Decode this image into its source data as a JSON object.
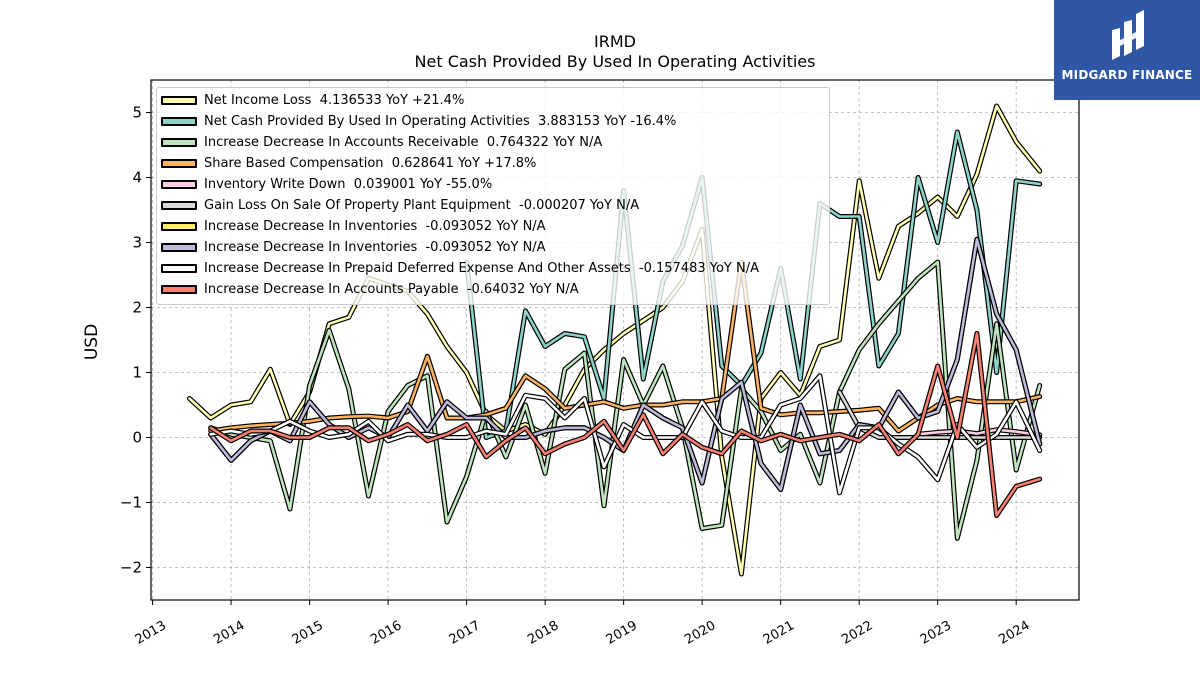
{
  "header": {
    "title": "IRMD",
    "subtitle": "Net Cash Provided By Used In Operating Activities"
  },
  "logo": {
    "text": "MIDGARD FINANCE",
    "bg_color": "#2f57a6"
  },
  "chart_data": {
    "type": "line",
    "title": "IRMD",
    "subtitle": "Net Cash Provided By Used In Operating Activities",
    "ylabel": "USD",
    "xlabel": "",
    "xlim": [
      2012.98,
      2024.8
    ],
    "ylim": [
      -2.5,
      5.5
    ],
    "yticks": [
      -2,
      -1,
      0,
      1,
      2,
      3,
      4,
      5
    ],
    "ytick_labels": [
      "−2",
      "−1",
      "0",
      "1",
      "2",
      "3",
      "4",
      "5"
    ],
    "xticks": [
      2013,
      2014,
      2015,
      2016,
      2017,
      2018,
      2019,
      2020,
      2021,
      2022,
      2023,
      2024
    ],
    "xtick_labels": [
      "2013",
      "2014",
      "2015",
      "2016",
      "2017",
      "2018",
      "2019",
      "2020",
      "2021",
      "2022",
      "2023",
      "2024"
    ],
    "grid": true,
    "legend_position": "upper-left",
    "series": [
      {
        "name": "Net Income Loss",
        "legend_label": "Net Income Loss  4.136533 YoY +21.4%",
        "color": "#ffffb3",
        "x": [
          2013.47,
          2013.74,
          2014.0,
          2014.25,
          2014.5,
          2014.75,
          2015.0,
          2015.25,
          2015.5,
          2015.75,
          2016.0,
          2016.25,
          2016.5,
          2016.75,
          2017.0,
          2017.25,
          2017.5,
          2017.75,
          2018.0,
          2018.25,
          2018.5,
          2018.75,
          2019.0,
          2019.25,
          2019.5,
          2019.75,
          2020.0,
          2020.25,
          2020.5,
          2020.75,
          2021.0,
          2021.25,
          2021.5,
          2021.75,
          2022.0,
          2022.25,
          2022.5,
          2022.75,
          2023.0,
          2023.25,
          2023.5,
          2023.75,
          2024.0,
          2024.3
        ],
        "y": [
          0.6,
          0.3,
          0.5,
          0.55,
          1.05,
          0.2,
          0.7,
          1.75,
          1.85,
          2.45,
          2.35,
          2.25,
          1.9,
          1.4,
          1.0,
          0.35,
          0.1,
          0.2,
          0.05,
          0.5,
          1.05,
          1.35,
          1.6,
          1.8,
          2.0,
          2.4,
          3.2,
          -0.3,
          -2.1,
          0.6,
          1.0,
          0.65,
          1.4,
          1.5,
          3.95,
          2.45,
          3.25,
          3.45,
          3.7,
          3.4,
          4.05,
          5.1,
          4.55,
          4.1
        ]
      },
      {
        "name": "Net Cash Provided By Used In Operating Activities",
        "legend_label": "Net Cash Provided By Used In Operating Activities  3.883153 YoY -16.4%",
        "color": "#8dd3c7",
        "x": [
          2017.0,
          2017.25,
          2017.5,
          2017.75,
          2018.0,
          2018.25,
          2018.5,
          2018.75,
          2019.0,
          2019.25,
          2019.5,
          2019.75,
          2020.0,
          2020.25,
          2020.5,
          2020.75,
          2021.0,
          2021.25,
          2021.5,
          2021.75,
          2022.0,
          2022.25,
          2022.5,
          2022.75,
          2023.0,
          2023.25,
          2023.5,
          2023.75,
          2024.0,
          2024.3
        ],
        "y": [
          2.7,
          0.0,
          0.1,
          1.95,
          1.4,
          1.6,
          1.55,
          0.6,
          3.8,
          0.9,
          2.4,
          2.95,
          4.0,
          1.1,
          0.8,
          1.3,
          2.6,
          0.9,
          3.6,
          3.4,
          3.4,
          1.1,
          1.6,
          4.0,
          3.0,
          4.7,
          3.5,
          1.0,
          3.95,
          3.9
        ]
      },
      {
        "name": "Increase Decrease In Accounts Receivable",
        "legend_label": "Increase Decrease In Accounts Receivable  0.764322 YoY N/A",
        "color": "#bfe5bf",
        "x": [
          2013.74,
          2014.0,
          2014.25,
          2014.5,
          2014.75,
          2015.0,
          2015.25,
          2015.5,
          2015.75,
          2016.0,
          2016.25,
          2016.5,
          2016.75,
          2017.0,
          2017.25,
          2017.5,
          2017.75,
          2018.0,
          2018.25,
          2018.5,
          2018.75,
          2019.0,
          2019.25,
          2019.5,
          2019.75,
          2020.0,
          2020.25,
          2020.5,
          2020.75,
          2021.0,
          2021.25,
          2021.5,
          2021.75,
          2022.0,
          2022.25,
          2022.5,
          2022.75,
          2023.0,
          2023.25,
          2023.5,
          2023.75,
          2024.0,
          2024.3
        ],
        "y": [
          0.15,
          0.05,
          0.0,
          -0.05,
          -1.1,
          0.8,
          1.65,
          0.75,
          -0.9,
          0.4,
          0.8,
          0.95,
          -1.3,
          -0.6,
          0.4,
          -0.3,
          0.5,
          -0.55,
          1.05,
          1.3,
          -1.05,
          1.2,
          0.5,
          1.1,
          0.15,
          -1.4,
          -1.35,
          0.75,
          0.4,
          -0.2,
          0.05,
          -0.7,
          0.7,
          1.35,
          1.75,
          2.1,
          2.45,
          2.7,
          -1.55,
          -0.35,
          1.75,
          -0.5,
          0.8
        ]
      },
      {
        "name": "Share Based Compensation",
        "legend_label": "Share Based Compensation  0.628641 YoY +17.8%",
        "color": "#fdb462",
        "x": [
          2013.74,
          2014.0,
          2014.25,
          2014.5,
          2014.75,
          2015.0,
          2015.25,
          2015.5,
          2015.75,
          2016.0,
          2016.25,
          2016.5,
          2016.75,
          2017.0,
          2017.25,
          2017.5,
          2017.75,
          2018.0,
          2018.25,
          2018.5,
          2018.75,
          2019.0,
          2019.25,
          2019.5,
          2019.75,
          2020.0,
          2020.25,
          2020.5,
          2020.75,
          2021.0,
          2021.25,
          2021.5,
          2021.75,
          2022.0,
          2022.25,
          2022.5,
          2022.75,
          2023.0,
          2023.25,
          2023.5,
          2023.75,
          2024.0,
          2024.3
        ],
        "y": [
          0.1,
          0.15,
          0.18,
          0.2,
          0.22,
          0.25,
          0.3,
          0.32,
          0.33,
          0.3,
          0.4,
          1.25,
          0.3,
          0.3,
          0.35,
          0.45,
          0.95,
          0.75,
          0.45,
          0.5,
          0.55,
          0.45,
          0.5,
          0.5,
          0.55,
          0.55,
          0.6,
          2.7,
          0.45,
          0.35,
          0.38,
          0.38,
          0.4,
          0.42,
          0.45,
          0.1,
          0.3,
          0.5,
          0.6,
          0.55,
          0.55,
          0.55,
          0.63
        ]
      },
      {
        "name": "Inventory Write Down",
        "legend_label": "Inventory Write Down  0.039001 YoY -55.0%",
        "color": "#fccde5",
        "x": [
          2022.75,
          2023.0,
          2023.25,
          2023.5,
          2023.75,
          2024.0,
          2024.3
        ],
        "y": [
          0.05,
          0.08,
          0.1,
          0.06,
          0.12,
          0.09,
          0.04
        ]
      },
      {
        "name": "Gain Loss On Sale Of Property Plant Equipment",
        "legend_label": "Gain Loss On Sale Of Property Plant Equipment  -0.000207 YoY N/A",
        "color": "#d9d9d9",
        "x": [
          2021.75,
          2022.0,
          2022.25,
          2022.5,
          2022.75,
          2023.0,
          2023.25,
          2023.5,
          2023.75,
          2024.0,
          2024.3
        ],
        "y": [
          0.7,
          0.15,
          0.0,
          0.0,
          0.0,
          0.0,
          0.0,
          0.0,
          0.0,
          0.0,
          0.0
        ]
      },
      {
        "name": "Increase Decrease In Inventories",
        "legend_label": "Increase Decrease In Inventories  -0.093052 YoY N/A",
        "color": "#ffed6f",
        "x": [
          2013.74,
          2014.0,
          2014.25,
          2014.5,
          2014.75,
          2015.0,
          2015.25,
          2015.5,
          2015.75,
          2016.0,
          2016.25,
          2016.5,
          2016.75,
          2017.0,
          2017.25,
          2017.5,
          2017.75,
          2018.0,
          2018.25,
          2018.5,
          2018.75,
          2019.0,
          2019.25,
          2019.5,
          2019.75,
          2020.0,
          2020.25,
          2020.5,
          2020.75,
          2021.0,
          2021.25,
          2021.5,
          2021.75,
          2022.0,
          2022.25,
          2022.5,
          2022.75,
          2023.0,
          2023.25,
          2023.5,
          2023.75,
          2024.0,
          2024.3
        ],
        "y": [
          0.05,
          -0.35,
          -0.05,
          0.1,
          -0.05,
          0.55,
          0.2,
          0.0,
          0.15,
          0.0,
          0.5,
          0.1,
          0.55,
          0.3,
          0.3,
          0.0,
          0.0,
          0.1,
          0.15,
          0.15,
          0.0,
          -0.2,
          0.5,
          0.3,
          0.15,
          -0.7,
          0.6,
          0.85,
          -0.4,
          -0.8,
          0.5,
          -0.25,
          -0.2,
          0.2,
          0.15,
          0.7,
          0.3,
          0.4,
          1.2,
          3.05,
          1.9,
          1.35,
          -0.1
        ]
      },
      {
        "name": "Increase Decrease In Inventories",
        "legend_label": "Increase Decrease In Inventories  -0.093052 YoY N/A",
        "color": "#bebada",
        "x": [
          2013.74,
          2014.0,
          2014.25,
          2014.5,
          2014.75,
          2015.0,
          2015.25,
          2015.5,
          2015.75,
          2016.0,
          2016.25,
          2016.5,
          2016.75,
          2017.0,
          2017.25,
          2017.5,
          2017.75,
          2018.0,
          2018.25,
          2018.5,
          2018.75,
          2019.0,
          2019.25,
          2019.5,
          2019.75,
          2020.0,
          2020.25,
          2020.5,
          2020.75,
          2021.0,
          2021.25,
          2021.5,
          2021.75,
          2022.0,
          2022.25,
          2022.5,
          2022.75,
          2023.0,
          2023.25,
          2023.5,
          2023.75,
          2024.0,
          2024.3
        ],
        "y": [
          0.05,
          -0.35,
          -0.05,
          0.1,
          -0.05,
          0.55,
          0.2,
          0.0,
          0.15,
          0.0,
          0.5,
          0.1,
          0.55,
          0.3,
          0.3,
          0.0,
          0.0,
          0.1,
          0.15,
          0.15,
          0.0,
          -0.2,
          0.5,
          0.3,
          0.15,
          -0.7,
          0.6,
          0.85,
          -0.4,
          -0.8,
          0.5,
          -0.25,
          -0.2,
          0.2,
          0.15,
          0.7,
          0.3,
          0.4,
          1.2,
          3.05,
          1.9,
          1.35,
          -0.1
        ]
      },
      {
        "name": "Increase Decrease In Prepaid Deferred Expense And Other Assets",
        "legend_label": "Increase Decrease In Prepaid Deferred Expense And Other Assets  -0.157483 YoY N/A",
        "color": "#ffffff",
        "x": [
          2013.74,
          2014.0,
          2014.25,
          2014.5,
          2014.75,
          2015.0,
          2015.25,
          2015.5,
          2015.75,
          2016.0,
          2016.25,
          2016.5,
          2016.75,
          2017.0,
          2017.25,
          2017.5,
          2017.75,
          2018.0,
          2018.25,
          2018.5,
          2018.75,
          2019.0,
          2019.25,
          2019.5,
          2019.75,
          2020.0,
          2020.25,
          2020.5,
          2020.75,
          2021.0,
          2021.25,
          2021.5,
          2021.75,
          2022.0,
          2022.25,
          2022.5,
          2022.75,
          2023.0,
          2023.25,
          2023.5,
          2023.75,
          2024.0,
          2024.3
        ],
        "y": [
          0.05,
          0.1,
          0.05,
          0.1,
          0.25,
          0.1,
          0.0,
          0.05,
          0.25,
          -0.05,
          0.05,
          0.05,
          0.0,
          0.0,
          0.1,
          0.05,
          0.65,
          0.6,
          0.3,
          0.6,
          -0.45,
          0.2,
          0.0,
          0.0,
          0.0,
          0.55,
          0.1,
          0.0,
          0.0,
          0.5,
          0.6,
          0.95,
          -0.85,
          0.15,
          0.15,
          -0.1,
          -0.3,
          -0.65,
          0.2,
          -0.15,
          0.05,
          0.55,
          -0.2
        ]
      },
      {
        "name": "Increase Decrease In Accounts Payable",
        "legend_label": "Increase Decrease In Accounts Payable  -0.64032 YoY N/A",
        "color": "#fb8072",
        "x": [
          2013.74,
          2014.0,
          2014.25,
          2014.5,
          2014.75,
          2015.0,
          2015.25,
          2015.5,
          2015.75,
          2016.0,
          2016.25,
          2016.5,
          2016.75,
          2017.0,
          2017.25,
          2017.5,
          2017.75,
          2018.0,
          2018.25,
          2018.5,
          2018.75,
          2019.0,
          2019.25,
          2019.5,
          2019.75,
          2020.0,
          2020.25,
          2020.5,
          2020.75,
          2021.0,
          2021.25,
          2021.5,
          2021.75,
          2022.0,
          2022.25,
          2022.5,
          2022.75,
          2023.0,
          2023.25,
          2023.5,
          2023.75,
          2024.0,
          2024.3
        ],
        "y": [
          0.15,
          -0.05,
          0.1,
          0.1,
          0.0,
          0.0,
          0.15,
          0.15,
          -0.05,
          0.05,
          0.2,
          -0.05,
          0.05,
          0.2,
          -0.3,
          -0.05,
          0.15,
          -0.25,
          -0.1,
          0.0,
          0.25,
          -0.2,
          0.35,
          -0.25,
          0.05,
          -0.15,
          -0.25,
          0.1,
          -0.05,
          0.05,
          -0.05,
          0.0,
          0.05,
          -0.05,
          0.2,
          -0.25,
          0.05,
          1.1,
          0.0,
          1.6,
          -1.2,
          -0.75,
          -0.64
        ]
      }
    ]
  }
}
